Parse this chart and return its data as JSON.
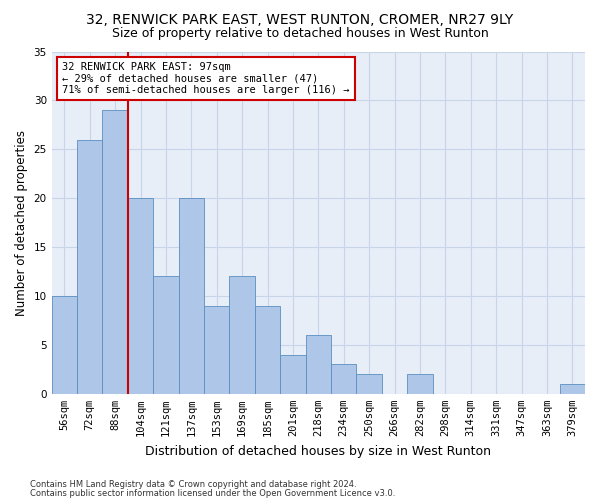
{
  "title1": "32, RENWICK PARK EAST, WEST RUNTON, CROMER, NR27 9LY",
  "title2": "Size of property relative to detached houses in West Runton",
  "xlabel": "Distribution of detached houses by size in West Runton",
  "ylabel": "Number of detached properties",
  "categories": [
    "56sqm",
    "72sqm",
    "88sqm",
    "104sqm",
    "121sqm",
    "137sqm",
    "153sqm",
    "169sqm",
    "185sqm",
    "201sqm",
    "218sqm",
    "234sqm",
    "250sqm",
    "266sqm",
    "282sqm",
    "298sqm",
    "314sqm",
    "331sqm",
    "347sqm",
    "363sqm",
    "379sqm"
  ],
  "values": [
    10,
    26,
    29,
    20,
    12,
    20,
    9,
    12,
    9,
    4,
    6,
    3,
    2,
    0,
    2,
    0,
    0,
    0,
    0,
    0,
    1
  ],
  "bar_color": "#aec6e8",
  "bar_edgecolor": "#5a8fc0",
  "ref_line_color": "#cc0000",
  "annotation_line1": "32 RENWICK PARK EAST: 97sqm",
  "annotation_line2": "← 29% of detached houses are smaller (47)",
  "annotation_line3": "71% of semi-detached houses are larger (116) →",
  "annotation_box_edgecolor": "#cc0000",
  "ylim": [
    0,
    35
  ],
  "yticks": [
    0,
    5,
    10,
    15,
    20,
    25,
    30,
    35
  ],
  "footnote1": "Contains HM Land Registry data © Crown copyright and database right 2024.",
  "footnote2": "Contains public sector information licensed under the Open Government Licence v3.0.",
  "bg_color": "#ffffff",
  "plot_bg_color": "#e8eef8",
  "grid_color": "#c8d4e8",
  "title_fontsize": 10,
  "subtitle_fontsize": 9,
  "tick_fontsize": 7.5,
  "xlabel_fontsize": 9,
  "ylabel_fontsize": 8.5,
  "footnote_fontsize": 6
}
